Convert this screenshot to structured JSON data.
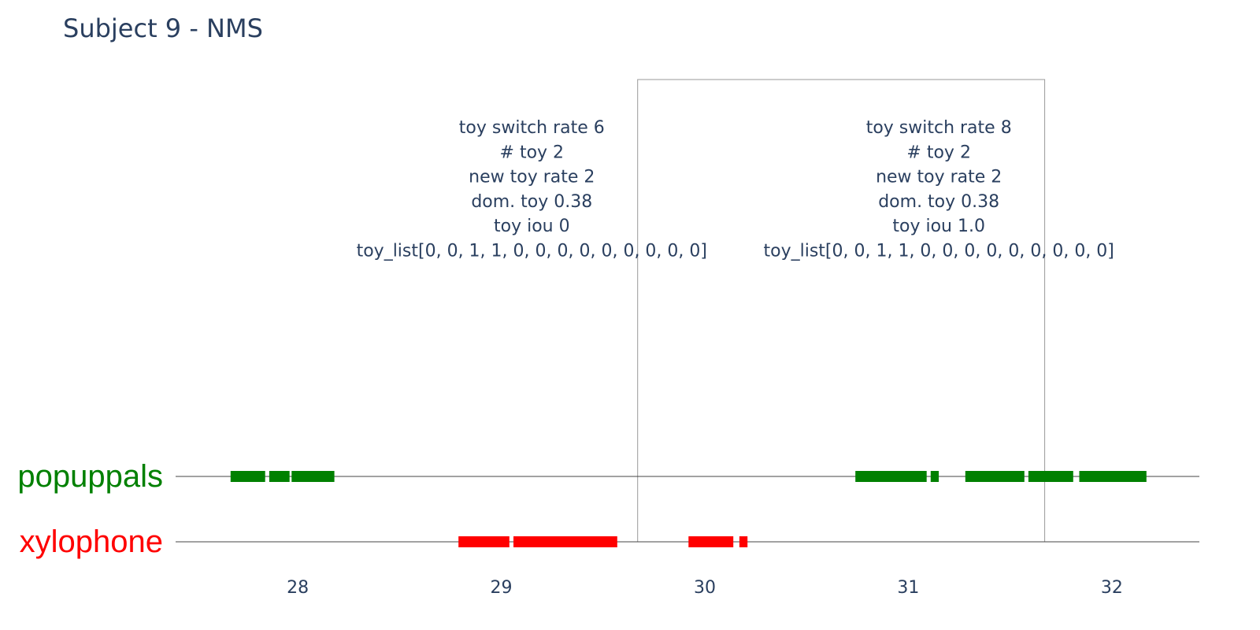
{
  "chart_data": {
    "type": "timeline",
    "title": "Subject 9 - NMS",
    "xlim": [
      27.4,
      32.43
    ],
    "x_ticks": [
      {
        "value": 28,
        "label": "28"
      },
      {
        "value": 29,
        "label": "29"
      },
      {
        "value": 30,
        "label": "30"
      },
      {
        "value": 31,
        "label": "31"
      },
      {
        "value": 32,
        "label": "32"
      }
    ],
    "grid": false,
    "tracks": [
      {
        "name": "popuppals",
        "color": "#008000",
        "segments": [
          [
            27.67,
            27.84
          ],
          [
            27.86,
            27.96
          ],
          [
            27.97,
            28.18
          ],
          [
            30.74,
            31.09
          ],
          [
            31.11,
            31.15
          ],
          [
            31.28,
            31.57
          ],
          [
            31.59,
            31.81
          ],
          [
            31.84,
            32.17
          ]
        ]
      },
      {
        "name": "xylophone",
        "color": "#ff0000",
        "segments": [
          [
            28.79,
            29.04
          ],
          [
            29.06,
            29.57
          ],
          [
            29.92,
            30.14
          ],
          [
            30.17,
            30.21
          ]
        ]
      }
    ],
    "window": {
      "x_start": 29.67,
      "x_end": 31.67
    },
    "annotations": [
      {
        "x": 29.15,
        "lines": [
          "toy switch rate 6",
          "# toy 2",
          "new toy rate 2",
          "dom. toy 0.38",
          "toy iou 0",
          "toy_list[0, 0, 1, 1, 0, 0, 0, 0, 0, 0, 0, 0, 0]"
        ]
      },
      {
        "x": 31.15,
        "lines": [
          "toy switch rate 8",
          "# toy 2",
          "new toy rate 2",
          "dom. toy 0.38",
          "toy iou 1.0",
          "toy_list[0, 0, 1, 1, 0, 0, 0, 0, 0, 0, 0, 0, 0]"
        ]
      }
    ]
  }
}
